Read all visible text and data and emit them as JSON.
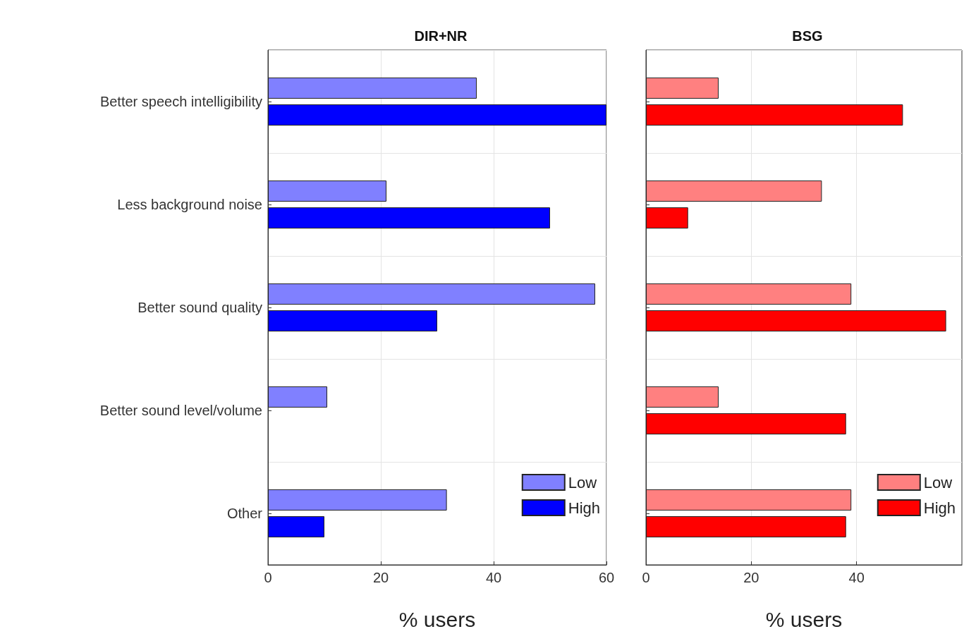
{
  "chart_data": [
    {
      "type": "bar",
      "orientation": "horizontal",
      "title": "DIR+NR",
      "xlabel": "% users",
      "categories": [
        "Better speech intelligibility",
        "Less background noise",
        "Better sound quality",
        "Better sound level/volume",
        "Other"
      ],
      "series": [
        {
          "name": "Low",
          "color": "#8080ff",
          "values": [
            37,
            21,
            58,
            10.5,
            31.7
          ]
        },
        {
          "name": "High",
          "color": "#0000ff",
          "values": [
            60,
            50,
            30,
            null,
            10
          ]
        }
      ],
      "xlim": [
        0,
        60
      ],
      "xticks": [
        0,
        20,
        40,
        60
      ],
      "grid": true,
      "legend": "bottom right"
    },
    {
      "type": "bar",
      "orientation": "horizontal",
      "title": "BSG",
      "xlabel": "% users",
      "categories": [
        null,
        null,
        null,
        null,
        null
      ],
      "series": [
        {
          "name": "Low",
          "color": "#ff8080",
          "values": [
            13.8,
            33.4,
            39,
            13.8,
            39
          ]
        },
        {
          "name": "High",
          "color": "#ff0000",
          "values": [
            48.8,
            8,
            57,
            38,
            38
          ]
        }
      ],
      "xlim": [
        0,
        60
      ],
      "xticks": [
        0,
        20,
        40
      ],
      "grid": true,
      "legend": "bottom right",
      "tick_labels": "x"
    }
  ]
}
